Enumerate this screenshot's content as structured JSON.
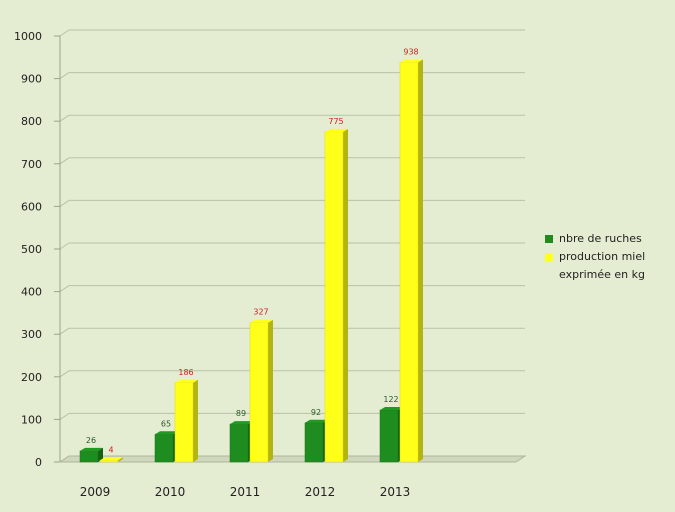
{
  "chart_data": {
    "type": "bar",
    "categories": [
      "2009",
      "2010",
      "2011",
      "2012",
      "2013"
    ],
    "series": [
      {
        "name": "nbre de ruches",
        "values": [
          26,
          65,
          89,
          92,
          122
        ],
        "color": "#1e8c1e"
      },
      {
        "name": "production miel exprimée en kg",
        "values": [
          4,
          186,
          327,
          775,
          938
        ],
        "color": "#ffff1a"
      }
    ],
    "y_ticks": [
      "0",
      "100",
      "200",
      "300",
      "400",
      "500",
      "600",
      "700",
      "800",
      "900",
      "1000"
    ],
    "ylim": [
      0,
      1000
    ],
    "grid": true,
    "legend_position": "right",
    "value_label_colors": [
      "#2a5a2a",
      "#d32020"
    ]
  },
  "legend": {
    "items": [
      {
        "label": "nbre de ruches",
        "color": "#1e8c1e"
      },
      {
        "label": "production miel exprimée en kg",
        "color": "#ffff1a"
      }
    ]
  }
}
